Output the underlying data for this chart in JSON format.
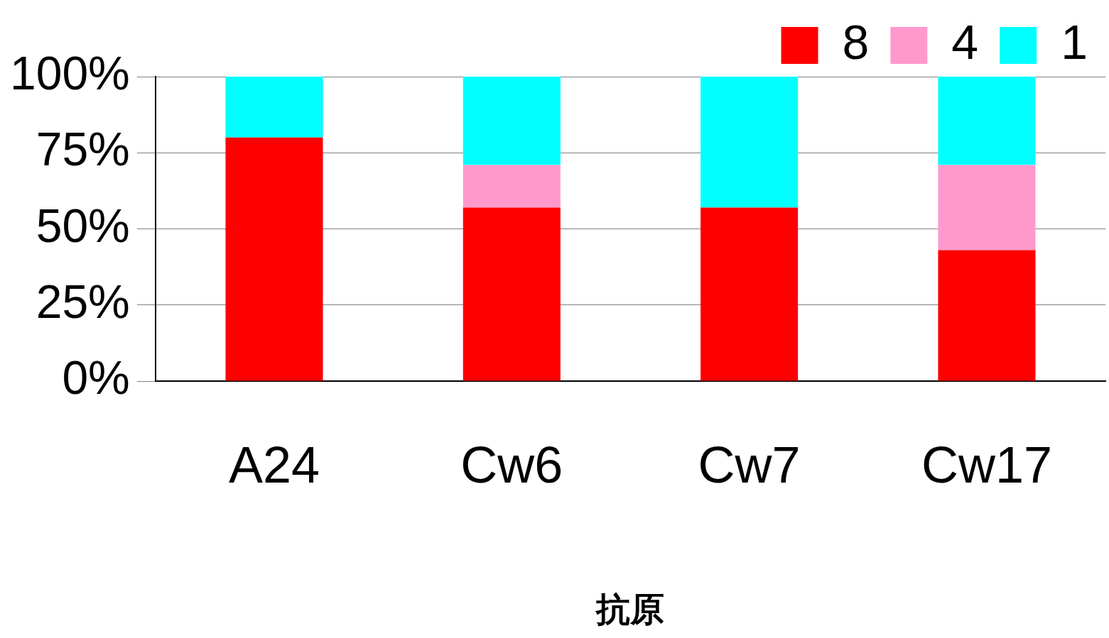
{
  "chart_data": {
    "type": "bar",
    "stacked": true,
    "xlabel": "抗原",
    "categories": [
      "A24",
      "Cw6",
      "Cw7",
      "Cw17"
    ],
    "series": [
      {
        "name": "8",
        "color": "#ff0000",
        "values": [
          80,
          57,
          57,
          43
        ]
      },
      {
        "name": "4",
        "color": "#ff99cc",
        "values": [
          0,
          14,
          0,
          28
        ]
      },
      {
        "name": "1",
        "color": "#00ffff",
        "values": [
          20,
          29,
          43,
          29
        ]
      }
    ],
    "ylim": [
      0,
      100
    ],
    "yticks": [
      {
        "value": 0,
        "label": "0%"
      },
      {
        "value": 25,
        "label": "25%"
      },
      {
        "value": 50,
        "label": "50%"
      },
      {
        "value": 75,
        "label": "75%"
      },
      {
        "value": 100,
        "label": "100%"
      }
    ],
    "grid": "y",
    "legend": "top right"
  }
}
